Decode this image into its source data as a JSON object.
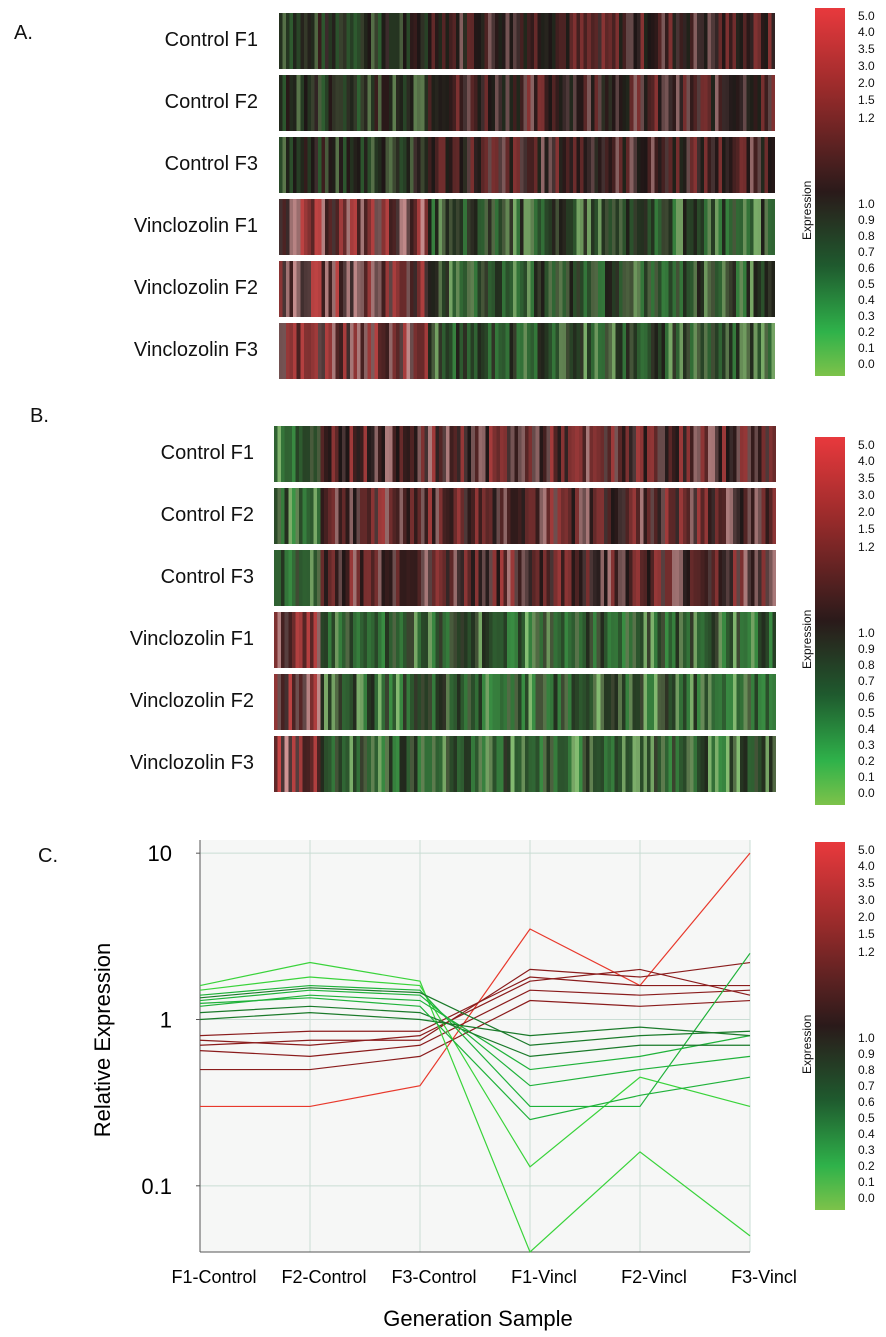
{
  "panels": {
    "a": {
      "letter": "A.",
      "rows": [
        "Control F1",
        "Control F2",
        "Control F3",
        "Vinclozolin F1",
        "Vinclozolin F2",
        "Vinclozolin F3"
      ]
    },
    "b": {
      "letter": "B.",
      "rows": [
        "Control F1",
        "Control F2",
        "Control F3",
        "Vinclozolin F1",
        "Vinclozolin F2",
        "Vinclozolin F3"
      ]
    },
    "c": {
      "letter": "C."
    }
  },
  "colorbar": {
    "title": "Expression",
    "ticks": [
      "5.0",
      "4.0",
      "3.5",
      "3.0",
      "2.0",
      "1.5",
      "1.2",
      "1.0",
      "0.9",
      "0.8",
      "0.7",
      "0.6",
      "0.5",
      "0.4",
      "0.3",
      "0.2",
      "0.1",
      "0.0"
    ],
    "colors": {
      "high": "#e8393d",
      "mid": "#1a1a1a",
      "low": "#7dc24a"
    }
  },
  "chart_data": [
    {
      "type": "heatmap",
      "panel": "A",
      "rows": [
        "Control F1",
        "Control F2",
        "Control F3",
        "Vinclozolin F1",
        "Vinclozolin F2",
        "Vinclozolin F3"
      ],
      "legend": "Expression"
    },
    {
      "type": "heatmap",
      "panel": "B",
      "rows": [
        "Control F1",
        "Control F2",
        "Control F3",
        "Vinclozolin F1",
        "Vinclozolin F2",
        "Vinclozolin F3"
      ],
      "legend": "Expression"
    },
    {
      "type": "line",
      "panel": "C",
      "categories": [
        "F1-Control",
        "F2-Control",
        "F3-Control",
        "F1-Vincl",
        "F2-Vincl",
        "F3-Vincl"
      ],
      "xlabel": "Generation Sample",
      "ylabel": "Relative Expression",
      "yscale": "log",
      "yticks": [
        "10",
        "1",
        "0.1"
      ],
      "ylim": [
        0.04,
        12
      ],
      "grid": true,
      "legend": "Expression",
      "series": [
        {
          "values": [
            0.3,
            0.3,
            0.4,
            3.5,
            1.6,
            10.0
          ]
        },
        {
          "values": [
            0.7,
            0.75,
            0.75,
            2.0,
            1.8,
            2.2
          ]
        },
        {
          "values": [
            0.8,
            0.85,
            0.85,
            1.8,
            1.6,
            1.6
          ]
        },
        {
          "values": [
            0.65,
            0.6,
            0.7,
            1.5,
            1.4,
            1.5
          ]
        },
        {
          "values": [
            0.5,
            0.5,
            0.6,
            1.3,
            1.2,
            1.3
          ]
        },
        {
          "values": [
            0.75,
            0.7,
            0.8,
            1.7,
            2.0,
            1.4
          ]
        },
        {
          "values": [
            1.6,
            2.2,
            1.7,
            0.04,
            0.16,
            0.05
          ]
        },
        {
          "values": [
            1.5,
            1.8,
            1.6,
            0.13,
            0.45,
            0.3
          ]
        },
        {
          "values": [
            1.4,
            1.6,
            1.5,
            0.3,
            0.3,
            2.5
          ]
        },
        {
          "values": [
            1.2,
            1.4,
            1.3,
            0.5,
            0.6,
            0.8
          ]
        },
        {
          "values": [
            1.1,
            1.2,
            1.1,
            0.6,
            0.7,
            0.7
          ]
        },
        {
          "values": [
            1.3,
            1.5,
            1.4,
            0.4,
            0.5,
            0.6
          ]
        },
        {
          "values": [
            1.0,
            1.1,
            1.0,
            0.8,
            0.9,
            0.8
          ]
        },
        {
          "values": [
            1.25,
            1.35,
            1.2,
            0.25,
            0.35,
            0.45
          ]
        },
        {
          "values": [
            1.35,
            1.55,
            1.45,
            0.7,
            0.8,
            0.85
          ]
        }
      ]
    }
  ]
}
